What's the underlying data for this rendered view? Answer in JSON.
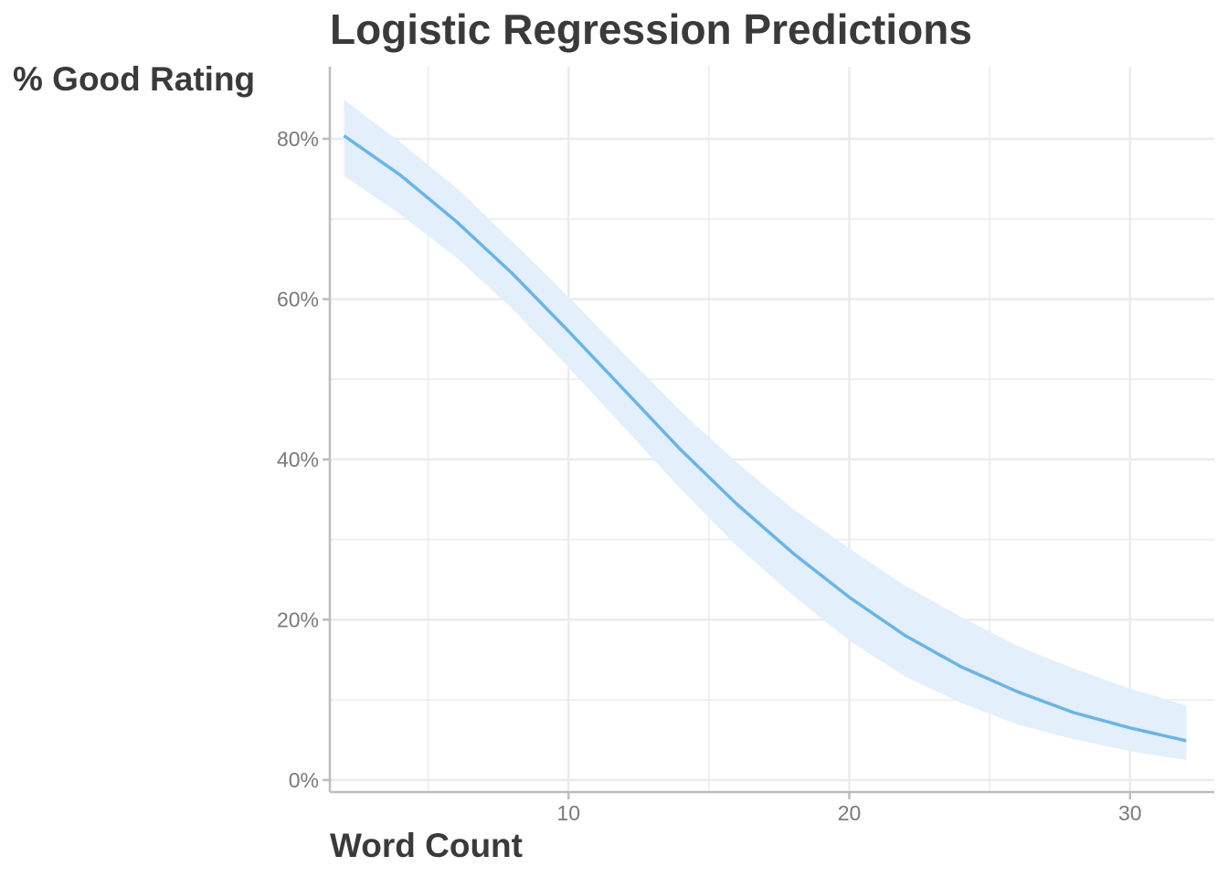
{
  "chart_data": {
    "type": "line",
    "title": "Logistic Regression Predictions",
    "xlabel": "Word Count",
    "ylabel": "% Good Rating",
    "xlim": [
      1.5,
      33
    ],
    "ylim": [
      -1.5,
      89
    ],
    "x_ticks": [
      10,
      20,
      30
    ],
    "x_tick_labels": [
      "10",
      "20",
      "30"
    ],
    "y_ticks": [
      0,
      20,
      40,
      60,
      80
    ],
    "y_tick_labels": [
      "0%",
      "20%",
      "40%",
      "60%",
      "80%"
    ],
    "grid": true,
    "legend": "none",
    "colors": {
      "line": "#6cb4e4",
      "band": "#e3effa",
      "grid": "#ebebeb",
      "axis": "#bdbdbd"
    },
    "series": [
      {
        "x": [
          2,
          4,
          6,
          8,
          10,
          12,
          14,
          16,
          18,
          20,
          22,
          24,
          26,
          28,
          30,
          32
        ],
        "y": [
          80.4,
          75.5,
          69.7,
          63.2,
          56.0,
          48.6,
          41.2,
          34.4,
          28.3,
          22.8,
          18.0,
          14.1,
          11.0,
          8.4,
          6.5,
          4.9
        ],
        "lower": [
          75.4,
          70.6,
          65.2,
          58.8,
          51.5,
          43.9,
          36.3,
          29.2,
          23.0,
          17.4,
          12.9,
          9.6,
          6.9,
          5.1,
          3.6,
          2.5
        ],
        "upper": [
          84.9,
          79.6,
          73.9,
          67.2,
          60.3,
          53.1,
          46.0,
          39.6,
          33.8,
          28.9,
          24.2,
          20.3,
          16.7,
          13.9,
          11.4,
          9.3
        ]
      }
    ]
  }
}
